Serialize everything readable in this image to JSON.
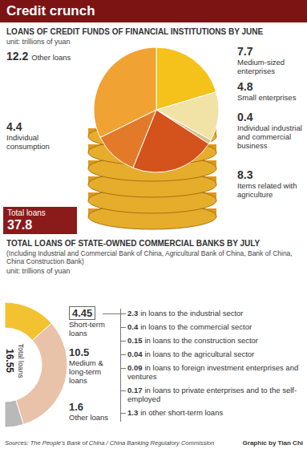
{
  "title": "Credit crunch",
  "chart_data": [
    {
      "type": "pie",
      "title": "LOANS OF CREDIT FUNDS OF FINANCIAL INSTITUTIONS BY JUNE",
      "unit": "unit: trillions of yuan",
      "categories": [
        "Medium-sized enterprises",
        "Small enterprises",
        "Individual industrial and commercial business",
        "Items related with agriculture",
        "Individual consumption",
        "Other loans"
      ],
      "values": [
        7.7,
        4.8,
        0.4,
        8.3,
        4.4,
        12.2
      ],
      "colors": [
        "#f4c21a",
        "#f1e2a6",
        "#d8bf8a",
        "#d4521c",
        "#e27a2a",
        "#f0a232"
      ],
      "data_labels": true,
      "total_label": "Total loans",
      "total": 37.8
    },
    {
      "type": "donut",
      "title": "TOTAL LOANS OF STATE-OWNED COMMERCIAL BANKS BY JULY",
      "subtitle": "(Including Industrial and Commercial Bank of China, Agricultural Bank of China, Bank of China, China Construction Bank)",
      "unit": "unit: trillions of yuan",
      "categories": [
        "Short-term loans",
        "Medium & long-term loans",
        "Other loans"
      ],
      "values": [
        4.45,
        10.5,
        1.6
      ],
      "colors": [
        "#f2c230",
        "#e9c2aa",
        "#b9b9b9"
      ],
      "data_labels": true,
      "total_label": "Total loans",
      "total": 16.55,
      "breakdown": [
        {
          "value": 2.3,
          "label": "in loans to the industrial sector"
        },
        {
          "value": 0.4,
          "label": "in loans to the commercial sector"
        },
        {
          "value": 0.15,
          "label": "in loans to the construction sector"
        },
        {
          "value": 0.04,
          "label": "in loans to the agricultural sector"
        },
        {
          "value": 0.09,
          "label": "in loans to foreign investment enterprises and ventures"
        },
        {
          "value": 0.17,
          "label": "in loans to private enterprises and to the self-employed"
        },
        {
          "value": 1.3,
          "label": "in other short-term loans"
        }
      ]
    }
  ],
  "sources": "Sources: The People's Bank of China / China Banking Regulatory Commission",
  "credit": "Graphic by Tian Chi"
}
